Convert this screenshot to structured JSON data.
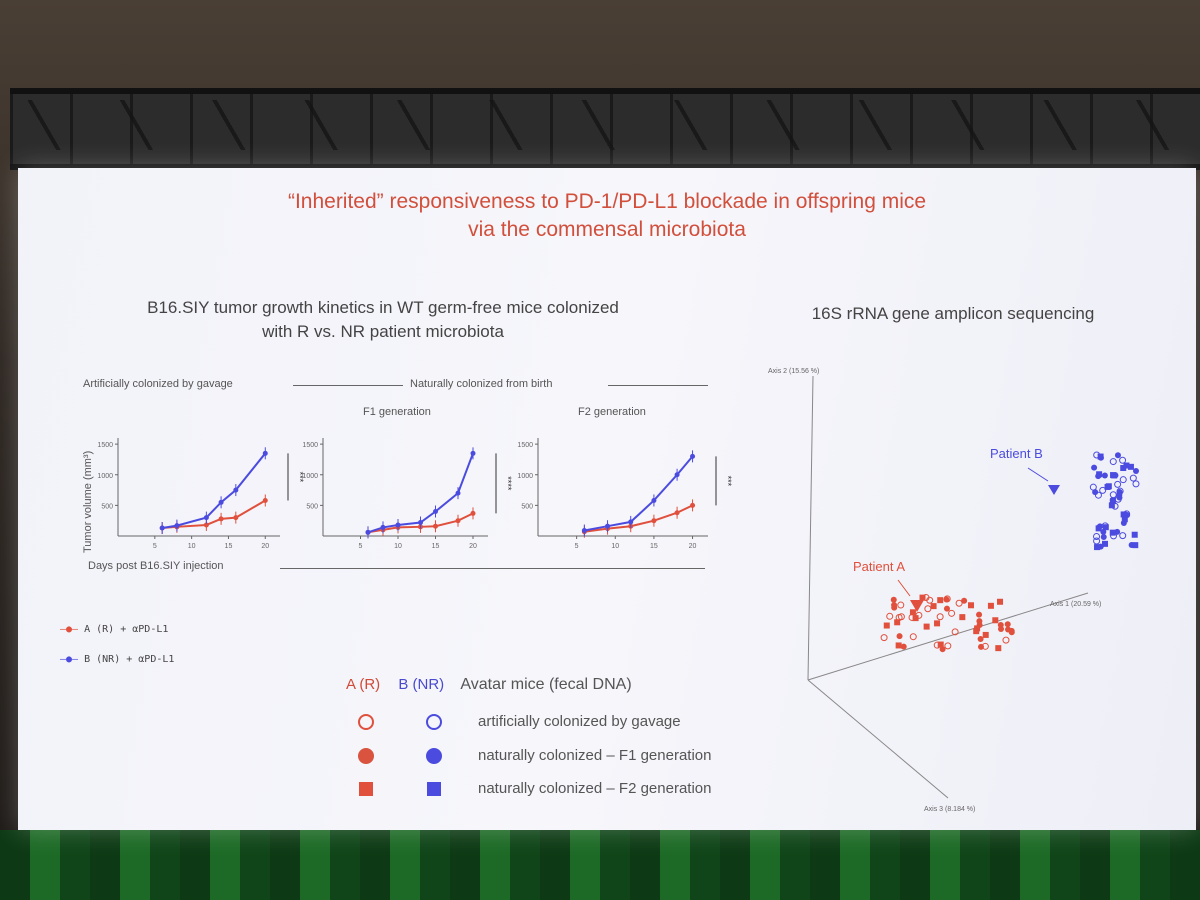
{
  "slide": {
    "title_line1": "“Inherited” responsiveness to PD-1/PD-L1 blockade in offspring mice",
    "title_line2": "via the commensal microbiota",
    "left_subtitle_line1": "B16.SIY tumor growth kinetics in WT germ-free mice colonized",
    "left_subtitle_line2": "with R vs. NR patient microbiota",
    "right_subtitle": "16S rRNA gene amplicon sequencing",
    "label_gavage": "Artificially colonized by gavage",
    "label_natural": "Naturally colonized from birth",
    "label_f1": "F1 generation",
    "label_f2": "F2 generation",
    "x_axis_label": "Days post B16.SIY injection",
    "y_axis_label": "Tumor volume (mm³)",
    "legend_a": "A (R) + αPD-L1",
    "legend_b": "B (NR) + αPD-L1"
  },
  "pcoa": {
    "axis1": "Axis 1 (20.59 %)",
    "axis2": "Axis 2 (15.56 %)",
    "axis3": "Axis 3 (8.184 %)",
    "patient_a": "Patient A",
    "patient_b": "Patient B"
  },
  "legend2": {
    "col_a": "A (R)",
    "col_b": "B (NR)",
    "header": "Avatar mice (fecal DNA)",
    "rows": [
      "artificially colonized by gavage",
      "naturally colonized – F1 generation",
      "naturally colonized – F2 generation"
    ]
  },
  "colors": {
    "red": "#e0503c",
    "blue": "#4b4be0",
    "title": "#d24f3c"
  },
  "chart_data": [
    {
      "type": "line",
      "title": "Artificially colonized by gavage",
      "xlabel": "Days post B16.SIY injection",
      "ylabel": "Tumor volume (mm³)",
      "ylim": [
        0,
        1600
      ],
      "xlim": [
        0,
        22
      ],
      "x_ticks": [
        5,
        10,
        15,
        20
      ],
      "y_ticks": [
        500,
        1000,
        1500
      ],
      "significance": "***",
      "series": [
        {
          "name": "A (R) + αPD-L1",
          "x": [
            6,
            8,
            12,
            14,
            16,
            20
          ],
          "values": [
            130,
            150,
            180,
            280,
            300,
            580
          ]
        },
        {
          "name": "B (NR) + αPD-L1",
          "x": [
            6,
            8,
            12,
            14,
            16,
            20
          ],
          "values": [
            130,
            170,
            300,
            550,
            750,
            1350
          ]
        }
      ]
    },
    {
      "type": "line",
      "title": "F1 generation",
      "ylim": [
        0,
        1600
      ],
      "xlim": [
        0,
        22
      ],
      "x_ticks": [
        5,
        10,
        15,
        20
      ],
      "y_ticks": [
        500,
        1000,
        1500
      ],
      "significance": "****",
      "series": [
        {
          "name": "A (R) + αPD-L1",
          "x": [
            6,
            8,
            10,
            13,
            15,
            18,
            20
          ],
          "values": [
            60,
            100,
            140,
            150,
            160,
            250,
            370
          ]
        },
        {
          "name": "B (NR) + αPD-L1",
          "x": [
            6,
            8,
            10,
            13,
            15,
            18,
            20
          ],
          "values": [
            60,
            140,
            180,
            220,
            400,
            700,
            1350
          ]
        }
      ]
    },
    {
      "type": "line",
      "title": "F2 generation",
      "ylim": [
        0,
        1600
      ],
      "xlim": [
        0,
        22
      ],
      "x_ticks": [
        5,
        10,
        15,
        20
      ],
      "y_ticks": [
        500,
        1000,
        1500
      ],
      "significance": "***",
      "series": [
        {
          "name": "A (R) + αPD-L1",
          "x": [
            6,
            9,
            12,
            15,
            18,
            20
          ],
          "values": [
            70,
            120,
            160,
            250,
            380,
            500
          ]
        },
        {
          "name": "B (NR) + αPD-L1",
          "x": [
            6,
            9,
            12,
            15,
            18,
            20
          ],
          "values": [
            90,
            160,
            230,
            580,
            1000,
            1300
          ]
        }
      ]
    }
  ]
}
